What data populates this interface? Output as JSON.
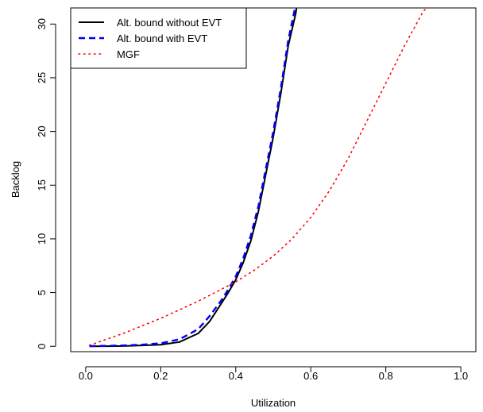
{
  "chart_data": {
    "type": "line",
    "title": "",
    "xlabel": "Utilization",
    "ylabel": "Backlog",
    "xlim": [
      -0.04,
      1.04
    ],
    "ylim": [
      -0.5,
      31.5
    ],
    "xticks": [
      0.0,
      0.2,
      0.4,
      0.6,
      0.8,
      1.0
    ],
    "xtick_labels": [
      "0.0",
      "0.2",
      "0.4",
      "0.6",
      "0.8",
      "1.0"
    ],
    "yticks": [
      0,
      5,
      10,
      15,
      20,
      25,
      30
    ],
    "ytick_labels": [
      "0",
      "5",
      "10",
      "15",
      "20",
      "25",
      "30"
    ],
    "grid": false,
    "legend_position": "top-left",
    "series": [
      {
        "name": "Alt. bound without EVT",
        "color": "#000000",
        "style": "solid",
        "x": [
          0.01,
          0.05,
          0.1,
          0.15,
          0.2,
          0.25,
          0.3,
          0.33,
          0.36,
          0.38,
          0.4,
          0.42,
          0.44,
          0.46,
          0.48,
          0.5,
          0.52,
          0.54,
          0.56,
          0.562
        ],
        "y": [
          0.0,
          0.01,
          0.03,
          0.08,
          0.15,
          0.4,
          1.2,
          2.3,
          3.9,
          5.0,
          6.2,
          7.8,
          9.8,
          12.5,
          16.0,
          19.5,
          23.5,
          28.0,
          31.0,
          31.5
        ]
      },
      {
        "name": "Alt. bound with EVT",
        "color": "#0000ff",
        "style": "dashed",
        "x": [
          0.01,
          0.05,
          0.1,
          0.15,
          0.2,
          0.25,
          0.3,
          0.33,
          0.36,
          0.38,
          0.4,
          0.42,
          0.44,
          0.46,
          0.48,
          0.5,
          0.52,
          0.54,
          0.558
        ],
        "y": [
          0.02,
          0.04,
          0.08,
          0.15,
          0.28,
          0.65,
          1.6,
          2.8,
          4.2,
          5.3,
          6.5,
          8.2,
          10.3,
          13.0,
          16.5,
          20.0,
          24.0,
          28.5,
          31.5
        ]
      },
      {
        "name": "MGF",
        "color": "#ff0000",
        "style": "dotted",
        "x": [
          0.01,
          0.1,
          0.2,
          0.3,
          0.4,
          0.45,
          0.5,
          0.55,
          0.6,
          0.65,
          0.7,
          0.75,
          0.8,
          0.85,
          0.9,
          0.91
        ],
        "y": [
          0.1,
          1.2,
          2.6,
          4.2,
          6.0,
          7.1,
          8.4,
          10.0,
          12.0,
          14.5,
          17.5,
          21.0,
          24.5,
          28.0,
          31.2,
          31.5
        ]
      }
    ]
  }
}
